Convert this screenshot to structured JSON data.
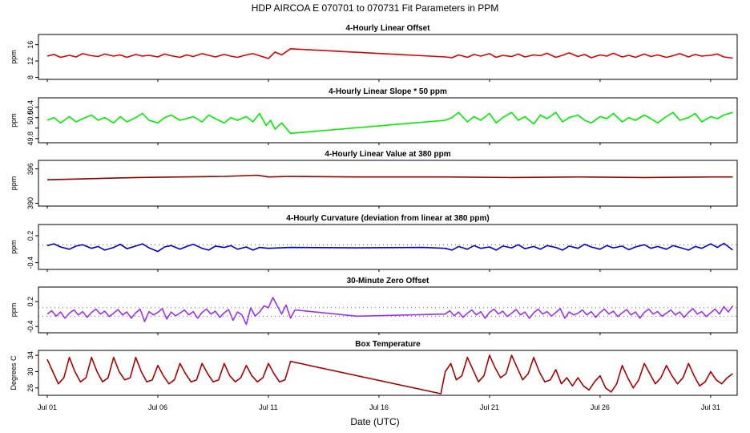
{
  "title": "HDP    AIRCOA E    070701 to 070731    Fit Parameters in PPM",
  "xlabel": "Date (UTC)",
  "x_ticks": [
    {
      "label": "Jul 01",
      "day": 1
    },
    {
      "label": "Jul 06",
      "day": 6
    },
    {
      "label": "Jul 11",
      "day": 11
    },
    {
      "label": "Jul 16",
      "day": 16
    },
    {
      "label": "Jul 21",
      "day": 21
    },
    {
      "label": "Jul 26",
      "day": 26
    },
    {
      "label": "Jul 31",
      "day": 31
    }
  ],
  "xlim": [
    0.6,
    32.2
  ],
  "chart_data": [
    {
      "type": "line",
      "title": "4-Hourly Linear Offset",
      "ylabel": "ppm",
      "ylim": [
        7.5,
        18.5
      ],
      "yticks": [
        8,
        12,
        16
      ],
      "color": "#dd0000",
      "series": [
        {
          "x": [
            1.0,
            1.3,
            1.6,
            2.0,
            2.3,
            2.6,
            3.0,
            3.3,
            3.6,
            4.0,
            4.3,
            4.6,
            5.0,
            5.3,
            5.6,
            6.0,
            6.3,
            6.6,
            7.0,
            7.3,
            7.6,
            8.0,
            8.3,
            8.6,
            9.0,
            9.3,
            9.6,
            10.0,
            10.3,
            10.6,
            11.0,
            11.3,
            11.6,
            12.0,
            12.3,
            19.0,
            19.3,
            19.6,
            20.0,
            20.3,
            20.6,
            21.0,
            21.3,
            21.6,
            22.0,
            22.3,
            22.6,
            23.0,
            23.3,
            23.6,
            24.0,
            24.3,
            24.6,
            25.0,
            25.3,
            25.6,
            26.0,
            26.3,
            26.6,
            27.0,
            27.3,
            27.6,
            28.0,
            28.3,
            28.6,
            29.0,
            29.3,
            29.6,
            30.0,
            30.3,
            30.6,
            31.0,
            31.3,
            31.6,
            32.0
          ],
          "y": [
            13.2,
            13.6,
            12.9,
            13.4,
            13.0,
            13.8,
            13.3,
            13.1,
            13.7,
            13.2,
            13.5,
            12.9,
            13.6,
            13.2,
            13.4,
            13.0,
            13.7,
            13.3,
            12.9,
            13.5,
            13.1,
            13.8,
            13.4,
            13.0,
            13.6,
            13.2,
            12.9,
            13.5,
            13.8,
            13.3,
            12.6,
            14.2,
            13.5,
            15.0,
            14.9,
            13.0,
            12.8,
            13.5,
            12.9,
            13.6,
            13.2,
            13.8,
            12.9,
            13.4,
            13.1,
            13.7,
            13.0,
            13.5,
            13.3,
            13.9,
            12.9,
            13.4,
            14.0,
            13.1,
            13.6,
            12.8,
            13.5,
            13.2,
            13.9,
            13.0,
            13.4,
            12.9,
            13.7,
            13.1,
            13.5,
            12.9,
            13.3,
            13.8,
            13.0,
            13.6,
            13.2,
            13.4,
            13.7,
            13.0,
            12.7
          ]
        }
      ]
    },
    {
      "type": "line",
      "title": "4-Hourly Linear Slope * 50 ppm",
      "ylabel": "ppm",
      "ylim": [
        49.72,
        50.58
      ],
      "yticks": [
        49.8,
        50.0,
        50.2,
        50.4
      ],
      "ytick_labels": [
        "49.8",
        "",
        "50.0",
        "50.4"
      ],
      "color": "#00ee00",
      "series": [
        {
          "x": [
            1.0,
            1.3,
            1.6,
            2.0,
            2.3,
            2.6,
            3.0,
            3.3,
            3.6,
            4.0,
            4.3,
            4.6,
            5.0,
            5.3,
            5.6,
            6.0,
            6.3,
            6.6,
            7.0,
            7.3,
            7.6,
            8.0,
            8.3,
            8.6,
            9.0,
            9.3,
            9.6,
            10.0,
            10.3,
            10.6,
            10.9,
            11.1,
            11.3,
            11.6,
            12.0,
            19.0,
            19.3,
            19.6,
            20.0,
            20.3,
            20.6,
            21.0,
            21.3,
            21.6,
            22.0,
            22.3,
            22.6,
            23.0,
            23.3,
            23.6,
            24.0,
            24.3,
            24.6,
            25.0,
            25.3,
            25.6,
            26.0,
            26.3,
            26.6,
            27.0,
            27.3,
            27.6,
            28.0,
            28.3,
            28.6,
            29.0,
            29.3,
            29.6,
            30.0,
            30.3,
            30.6,
            31.0,
            31.3,
            31.6,
            32.0
          ],
          "y": [
            50.15,
            50.2,
            50.1,
            50.22,
            50.12,
            50.18,
            50.25,
            50.15,
            50.2,
            50.1,
            50.22,
            50.12,
            50.2,
            50.28,
            50.15,
            50.1,
            50.2,
            50.25,
            50.15,
            50.18,
            50.22,
            50.12,
            50.25,
            50.18,
            50.1,
            50.2,
            50.15,
            50.22,
            50.12,
            50.28,
            50.05,
            50.15,
            49.98,
            50.1,
            49.9,
            50.15,
            50.2,
            50.3,
            50.12,
            50.22,
            50.15,
            50.28,
            50.1,
            50.2,
            50.3,
            50.15,
            50.22,
            50.08,
            50.25,
            50.18,
            50.3,
            50.12,
            50.2,
            50.25,
            50.15,
            50.1,
            50.22,
            50.18,
            50.28,
            50.12,
            50.2,
            50.15,
            50.25,
            50.18,
            50.1,
            50.22,
            50.3,
            50.15,
            50.2,
            50.28,
            50.12,
            50.22,
            50.18,
            50.25,
            50.3
          ]
        }
      ]
    },
    {
      "type": "line",
      "title": "4-Hourly Linear Value at 380 ppm",
      "ylabel": "ppm",
      "ylim": [
        389.5,
        397.5
      ],
      "yticks": [
        390,
        396
      ],
      "color": "#8b0000",
      "series": [
        {
          "x": [
            1.0,
            3.0,
            5.0,
            7.0,
            9.0,
            10.5,
            11.0,
            12.0,
            15.0,
            19.0,
            22.0,
            25.0,
            28.0,
            31.0,
            32.0
          ],
          "y": [
            394.1,
            394.3,
            394.5,
            394.6,
            394.7,
            394.9,
            394.6,
            394.7,
            394.6,
            394.6,
            394.5,
            394.6,
            394.5,
            394.6,
            394.6
          ]
        }
      ]
    },
    {
      "type": "line",
      "title": "4-Hourly Curvature (deviation from linear at 380 ppm)",
      "ylabel": "ppm",
      "ylim": [
        -0.55,
        0.45
      ],
      "yticks": [
        -0.4,
        0.2
      ],
      "ytick_labels": [
        "-0.4",
        "0.2"
      ],
      "reference_y": 0,
      "color": "#0000cc",
      "series": [
        {
          "x": [
            1.0,
            1.3,
            1.6,
            2.0,
            2.3,
            2.6,
            3.0,
            3.3,
            3.6,
            4.0,
            4.3,
            4.6,
            5.0,
            5.3,
            5.6,
            6.0,
            6.3,
            6.6,
            7.0,
            7.3,
            7.6,
            8.0,
            8.3,
            8.6,
            9.0,
            9.3,
            9.6,
            10.0,
            10.3,
            10.6,
            11.0,
            12.0,
            15.0,
            18.0,
            19.0,
            19.3,
            19.6,
            20.0,
            20.3,
            20.6,
            21.0,
            21.3,
            21.6,
            22.0,
            22.3,
            22.6,
            23.0,
            23.3,
            23.6,
            24.0,
            24.3,
            24.6,
            25.0,
            25.3,
            25.6,
            26.0,
            26.3,
            26.6,
            27.0,
            27.3,
            27.6,
            28.0,
            28.3,
            28.6,
            29.0,
            29.3,
            29.6,
            30.0,
            30.3,
            30.6,
            31.0,
            31.3,
            31.6,
            32.0
          ],
          "y": [
            -0.02,
            0.02,
            -0.05,
            -0.1,
            -0.03,
            0.0,
            -0.08,
            -0.04,
            -0.12,
            -0.06,
            0.01,
            -0.09,
            -0.03,
            0.02,
            -0.07,
            -0.15,
            -0.05,
            -0.02,
            -0.1,
            -0.04,
            0.01,
            -0.08,
            -0.12,
            -0.03,
            -0.06,
            -0.02,
            -0.1,
            -0.05,
            -0.12,
            -0.06,
            -0.08,
            -0.06,
            -0.07,
            -0.06,
            -0.08,
            -0.12,
            -0.04,
            -0.1,
            -0.02,
            -0.08,
            -0.05,
            -0.12,
            -0.03,
            -0.07,
            0.0,
            -0.09,
            -0.04,
            -0.1,
            -0.02,
            -0.06,
            -0.12,
            -0.03,
            -0.08,
            0.01,
            -0.05,
            -0.1,
            -0.02,
            -0.07,
            -0.03,
            -0.11,
            -0.05,
            0.0,
            -0.08,
            -0.04,
            -0.1,
            -0.02,
            -0.06,
            -0.12,
            -0.04,
            -0.08,
            0.02,
            -0.06,
            0.03,
            -0.12
          ]
        }
      ]
    },
    {
      "type": "line",
      "title": "30-Minute Zero Offset",
      "ylabel": "ppm",
      "ylim": [
        -0.55,
        0.55
      ],
      "yticks": [
        -0.4,
        0.2
      ],
      "ytick_labels": [
        "-0.4",
        "0.2"
      ],
      "reference_lines": [
        0.05,
        -0.15
      ],
      "color": "#9933ee",
      "series": [
        {
          "x": [
            1.0,
            1.2,
            1.4,
            1.6,
            1.8,
            2.0,
            2.2,
            2.4,
            2.6,
            2.8,
            3.0,
            3.2,
            3.4,
            3.6,
            3.8,
            4.0,
            4.2,
            4.4,
            4.6,
            4.8,
            5.0,
            5.2,
            5.4,
            5.6,
            5.8,
            6.0,
            6.2,
            6.4,
            6.6,
            6.8,
            7.0,
            7.2,
            7.4,
            7.6,
            7.8,
            8.0,
            8.2,
            8.4,
            8.6,
            8.8,
            9.0,
            9.2,
            9.4,
            9.6,
            9.8,
            10.0,
            10.2,
            10.4,
            10.6,
            10.8,
            11.0,
            11.2,
            11.4,
            11.6,
            11.8,
            12.0,
            12.2,
            15.0,
            19.0,
            19.2,
            19.4,
            19.6,
            19.8,
            20.0,
            20.2,
            20.4,
            20.6,
            20.8,
            21.0,
            21.2,
            21.4,
            21.6,
            21.8,
            22.0,
            22.2,
            22.4,
            22.6,
            22.8,
            23.0,
            23.2,
            23.4,
            23.6,
            23.8,
            24.0,
            24.2,
            24.4,
            24.6,
            24.8,
            25.0,
            25.2,
            25.4,
            25.6,
            25.8,
            26.0,
            26.2,
            26.4,
            26.6,
            26.8,
            27.0,
            27.2,
            27.4,
            27.6,
            27.8,
            28.0,
            28.2,
            28.4,
            28.6,
            28.8,
            29.0,
            29.2,
            29.4,
            29.6,
            29.8,
            30.0,
            30.2,
            30.4,
            30.6,
            30.8,
            31.0,
            31.2,
            31.4,
            31.6,
            31.8,
            32.0
          ],
          "y": [
            -0.1,
            -0.02,
            -0.15,
            -0.05,
            -0.2,
            -0.08,
            0.0,
            -0.12,
            -0.04,
            -0.18,
            -0.06,
            0.02,
            -0.1,
            -0.03,
            -0.16,
            -0.08,
            0.01,
            -0.12,
            -0.05,
            -0.2,
            -0.07,
            0.02,
            -0.28,
            -0.04,
            -0.12,
            -0.06,
            0.03,
            -0.22,
            -0.05,
            -0.14,
            -0.08,
            0.0,
            -0.12,
            -0.04,
            -0.2,
            -0.06,
            0.02,
            -0.1,
            -0.03,
            -0.18,
            -0.07,
            0.01,
            -0.25,
            -0.05,
            -0.12,
            -0.35,
            0.05,
            -0.15,
            -0.05,
            0.1,
            0.05,
            0.3,
            0.1,
            -0.1,
            0.12,
            -0.2,
            0.0,
            -0.15,
            -0.1,
            -0.02,
            -0.14,
            -0.05,
            -0.18,
            -0.08,
            0.0,
            -0.12,
            -0.04,
            -0.2,
            -0.06,
            0.02,
            -0.1,
            -0.03,
            -0.16,
            -0.08,
            0.01,
            -0.12,
            -0.05,
            -0.2,
            -0.07,
            0.02,
            -0.1,
            -0.04,
            -0.15,
            -0.06,
            0.03,
            -0.2,
            -0.05,
            -0.12,
            -0.08,
            0.0,
            -0.12,
            -0.04,
            -0.18,
            -0.06,
            0.02,
            -0.1,
            -0.03,
            -0.16,
            -0.07,
            0.01,
            -0.12,
            -0.05,
            -0.2,
            -0.06,
            0.02,
            -0.1,
            -0.04,
            -0.15,
            -0.08,
            0.0,
            -0.12,
            -0.05,
            -0.18,
            -0.06,
            0.03,
            -0.1,
            -0.04,
            -0.16,
            -0.07,
            0.02,
            -0.1,
            0.08,
            -0.05,
            0.1
          ]
        }
      ]
    },
    {
      "type": "line",
      "title": "Box Temperature",
      "ylabel": "Degrees C",
      "ylim": [
        24.2,
        35.2
      ],
      "yticks": [
        26,
        30,
        34
      ],
      "ytick_labels": [
        "26",
        "30",
        "34"
      ],
      "color": "#aa0000",
      "series": [
        {
          "x": [
            1.0,
            1.25,
            1.5,
            1.75,
            2.0,
            2.25,
            2.5,
            2.75,
            3.0,
            3.25,
            3.5,
            3.75,
            4.0,
            4.25,
            4.5,
            4.75,
            5.0,
            5.25,
            5.5,
            5.75,
            6.0,
            6.25,
            6.5,
            6.75,
            7.0,
            7.25,
            7.5,
            7.75,
            8.0,
            8.25,
            8.5,
            8.75,
            9.0,
            9.25,
            9.5,
            9.75,
            10.0,
            10.25,
            10.5,
            10.75,
            11.0,
            11.25,
            11.5,
            11.75,
            12.0,
            18.8,
            19.0,
            19.25,
            19.5,
            19.75,
            20.0,
            20.25,
            20.5,
            20.75,
            21.0,
            21.25,
            21.5,
            21.75,
            22.0,
            22.25,
            22.5,
            22.75,
            23.0,
            23.25,
            23.5,
            23.75,
            24.0,
            24.25,
            24.5,
            24.75,
            25.0,
            25.25,
            25.5,
            25.75,
            26.0,
            26.25,
            26.5,
            26.75,
            27.0,
            27.25,
            27.5,
            27.75,
            28.0,
            28.25,
            28.5,
            28.75,
            29.0,
            29.25,
            29.5,
            29.75,
            30.0,
            30.25,
            30.5,
            30.75,
            31.0,
            31.25,
            31.5,
            31.75,
            32.0
          ],
          "y": [
            33.0,
            30.0,
            27.0,
            28.5,
            33.5,
            30.0,
            27.5,
            28.5,
            33.5,
            30.0,
            27.5,
            28.5,
            33.5,
            30.0,
            28.0,
            28.5,
            33.5,
            30.0,
            27.5,
            28.0,
            31.5,
            29.0,
            27.0,
            28.0,
            32.0,
            29.5,
            27.5,
            28.0,
            32.0,
            29.5,
            27.5,
            28.0,
            32.0,
            29.0,
            27.5,
            28.5,
            31.5,
            29.0,
            27.5,
            28.5,
            32.0,
            29.5,
            27.5,
            28.0,
            32.5,
            24.6,
            30.0,
            32.0,
            28.0,
            29.0,
            33.5,
            30.5,
            27.5,
            29.0,
            34.0,
            31.0,
            28.5,
            29.5,
            34.0,
            31.0,
            28.0,
            29.5,
            33.5,
            30.0,
            27.5,
            28.0,
            30.5,
            27.0,
            28.5,
            26.5,
            28.5,
            26.5,
            25.5,
            27.5,
            29.0,
            26.0,
            25.0,
            27.0,
            31.5,
            28.5,
            26.0,
            28.0,
            32.0,
            29.5,
            27.0,
            28.5,
            31.5,
            29.0,
            27.0,
            28.5,
            32.0,
            29.0,
            26.5,
            27.5,
            30.0,
            28.0,
            27.0,
            28.5,
            29.5
          ]
        }
      ]
    }
  ]
}
